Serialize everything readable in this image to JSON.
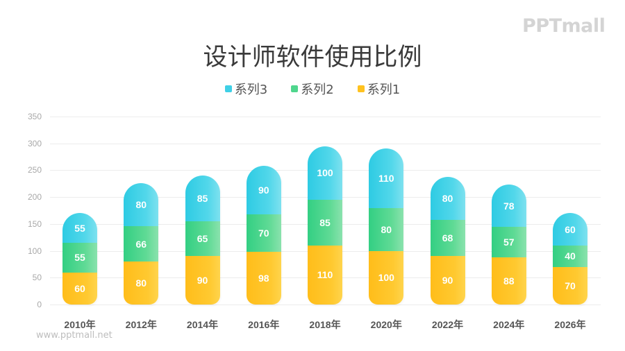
{
  "logo": "PPTmall",
  "title": "设计师软件使用比例",
  "footer": "www.pptmall.net",
  "colors": {
    "series1": "#ffc21f",
    "series2": "#4fd68d",
    "series3": "#3fd0e6",
    "grid": "#ececec",
    "text": "#3a3a3a"
  },
  "legend": [
    {
      "label": "系列3",
      "color": "#3fd0e6"
    },
    {
      "label": "系列2",
      "color": "#4fd68d"
    },
    {
      "label": "系列1",
      "color": "#ffc21f"
    }
  ],
  "chart_data": {
    "type": "bar",
    "stacked": true,
    "title": "设计师软件使用比例",
    "xlabel": "",
    "ylabel": "",
    "ylim": [
      0,
      350
    ],
    "yticks": [
      0,
      50,
      100,
      150,
      200,
      250,
      300,
      350
    ],
    "grid": true,
    "legend_position": "top",
    "categories": [
      "2010年",
      "2012年",
      "2014年",
      "2016年",
      "2018年",
      "2020年",
      "2022年",
      "2024年",
      "2026年"
    ],
    "series": [
      {
        "name": "系列1",
        "values": [
          60,
          80,
          90,
          98,
          110,
          100,
          90,
          88,
          70
        ]
      },
      {
        "name": "系列2",
        "values": [
          55,
          66,
          65,
          70,
          85,
          80,
          68,
          57,
          40
        ]
      },
      {
        "name": "系列3",
        "values": [
          55,
          80,
          85,
          90,
          100,
          110,
          80,
          78,
          60
        ]
      }
    ]
  }
}
